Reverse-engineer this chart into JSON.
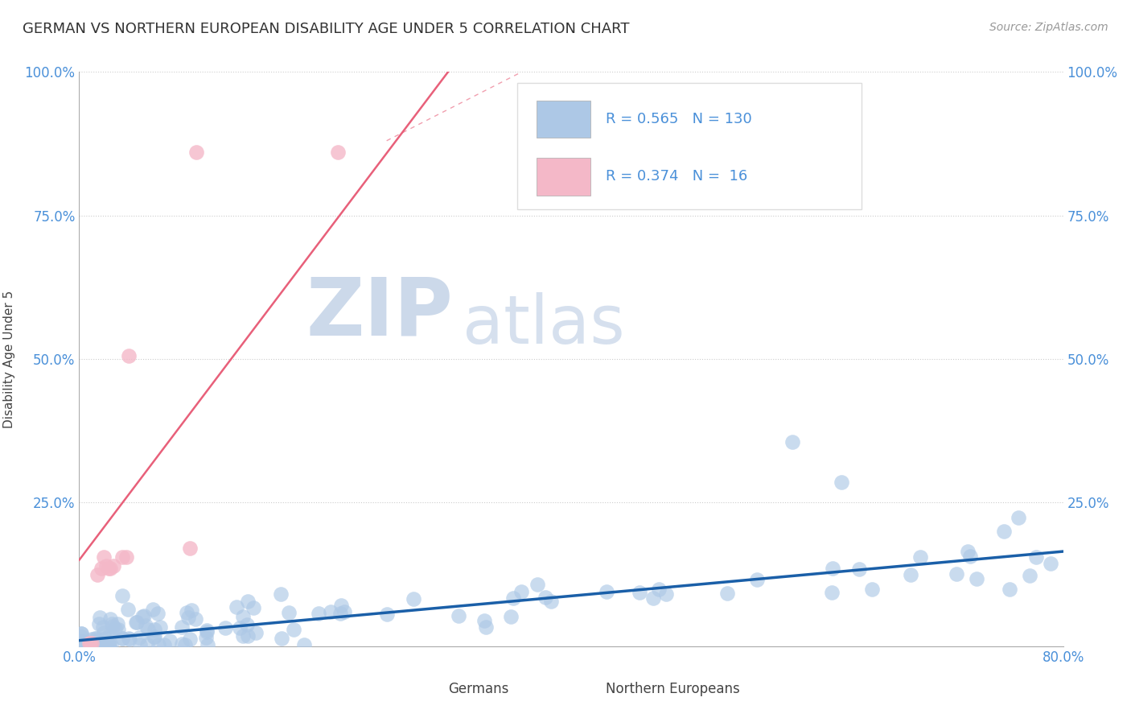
{
  "title": "GERMAN VS NORTHERN EUROPEAN DISABILITY AGE UNDER 5 CORRELATION CHART",
  "source": "Source: ZipAtlas.com",
  "ylabel": "Disability Age Under 5",
  "xmin": 0.0,
  "xmax": 0.8,
  "ymin": 0.0,
  "ymax": 1.0,
  "german_R": 0.565,
  "german_N": 130,
  "ne_R": 0.374,
  "ne_N": 16,
  "german_color": "#adc8e6",
  "ne_color": "#f4b8c8",
  "german_line_color": "#1a5fa8",
  "ne_line_color": "#e8607a",
  "watermark_zip": "ZIP",
  "watermark_atlas": "atlas",
  "watermark_color": "#ccd9ea",
  "legend_label_german": "Germans",
  "legend_label_ne": "Northern Europeans",
  "title_color": "#333333",
  "axis_tick_color": "#4a90d9",
  "background_color": "#ffffff",
  "grid_color": "#cccccc",
  "ne_scatter_x": [
    0.008,
    0.009,
    0.01,
    0.015,
    0.018,
    0.02,
    0.022,
    0.024,
    0.025,
    0.028,
    0.035,
    0.038,
    0.04,
    0.09,
    0.095,
    0.21
  ],
  "ne_scatter_y": [
    0.005,
    0.005,
    0.005,
    0.125,
    0.135,
    0.155,
    0.14,
    0.135,
    0.135,
    0.14,
    0.155,
    0.155,
    0.505,
    0.17,
    0.86,
    0.86
  ],
  "german_trend_x": [
    0.0,
    0.8
  ],
  "german_trend_y": [
    0.01,
    0.165
  ],
  "ne_trend_x": [
    0.0,
    0.3
  ],
  "ne_trend_y": [
    0.15,
    1.0
  ]
}
